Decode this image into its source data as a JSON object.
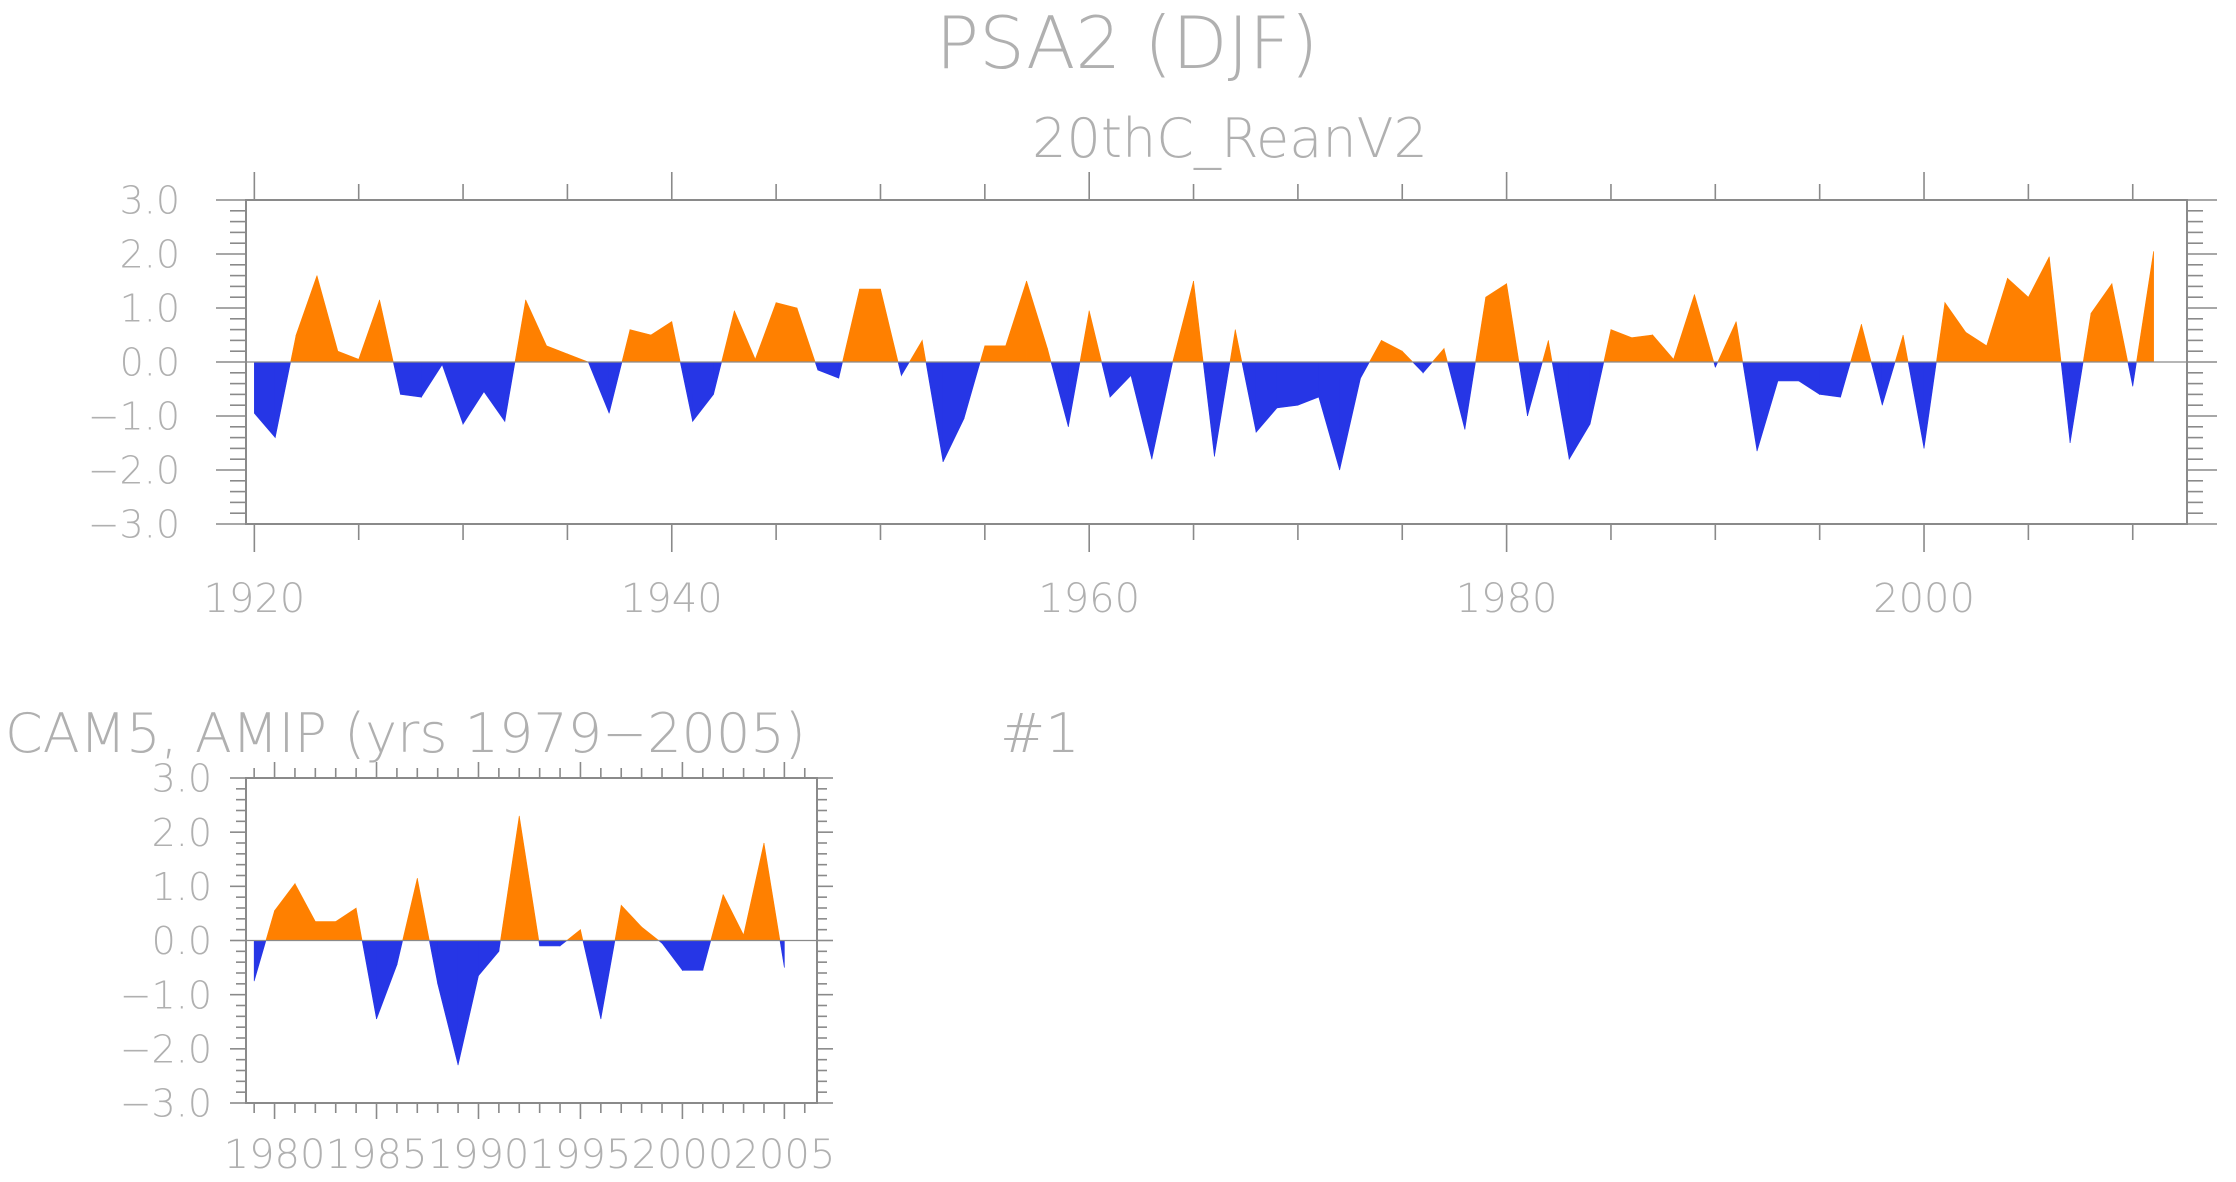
{
  "main_title": "PSA2 (DJF)",
  "panel_label": "#1",
  "colors": {
    "positive": "#ff8000",
    "negative": "#2636e6",
    "text": "#b0b0b0",
    "axis": "#8a8a8a"
  },
  "chart_data": [
    {
      "type": "area",
      "title": "20thC_ReanV2",
      "x_tick_labels": [
        "1920",
        "1940",
        "1960",
        "1980",
        "2000"
      ],
      "x_ticks": [
        1920,
        1940,
        1960,
        1980,
        2000
      ],
      "y_tick_labels": [
        "3.0",
        "2.0",
        "1.0",
        "0.0",
        "−1.0",
        "−2.0",
        "−3.0"
      ],
      "y_ticks": [
        3,
        2,
        1,
        0,
        -1,
        -2,
        -3
      ],
      "xlim": [
        1919.6,
        2012.6
      ],
      "ylim": [
        -3,
        3
      ],
      "fill_above_zero": "positive",
      "fill_below_zero": "negative",
      "x": [
        1920,
        1921,
        1922,
        1923,
        1924,
        1925,
        1926,
        1927,
        1928,
        1929,
        1930,
        1931,
        1932,
        1933,
        1934,
        1935,
        1936,
        1937,
        1938,
        1939,
        1940,
        1941,
        1942,
        1943,
        1944,
        1945,
        1946,
        1947,
        1948,
        1949,
        1950,
        1951,
        1952,
        1953,
        1954,
        1955,
        1956,
        1957,
        1958,
        1959,
        1960,
        1961,
        1962,
        1963,
        1964,
        1965,
        1966,
        1967,
        1968,
        1969,
        1970,
        1971,
        1972,
        1973,
        1974,
        1975,
        1976,
        1977,
        1978,
        1979,
        1980,
        1981,
        1982,
        1983,
        1984,
        1985,
        1986,
        1987,
        1988,
        1989,
        1990,
        1991,
        1992,
        1993,
        1994,
        1995,
        1996,
        1997,
        1998,
        1999,
        2000,
        2001,
        2002,
        2003,
        2004,
        2005,
        2006,
        2007,
        2008,
        2009,
        2010,
        2011
      ],
      "values": [
        -0.95,
        -1.4,
        0.5,
        1.6,
        0.2,
        0.05,
        1.15,
        -0.6,
        -0.65,
        -0.05,
        -1.15,
        -0.55,
        -1.1,
        1.15,
        0.3,
        0.15,
        0.0,
        -0.95,
        0.6,
        0.5,
        0.75,
        -1.1,
        -0.6,
        0.95,
        0.05,
        1.1,
        1.0,
        -0.15,
        -0.3,
        1.35,
        1.35,
        -0.25,
        0.4,
        -1.85,
        -1.05,
        0.3,
        0.3,
        1.5,
        0.25,
        -1.2,
        0.95,
        -0.65,
        -0.25,
        -1.8,
        0.0,
        1.5,
        -1.75,
        0.6,
        -1.3,
        -0.85,
        -0.8,
        -0.65,
        -2.0,
        -0.3,
        0.4,
        0.2,
        -0.2,
        0.25,
        -1.25,
        1.2,
        1.45,
        -1.0,
        0.4,
        -1.8,
        -1.15,
        0.6,
        0.45,
        0.5,
        0.05,
        1.25,
        -0.1,
        0.75,
        -1.65,
        -0.35,
        -0.35,
        -0.6,
        -0.65,
        0.7,
        -0.8,
        0.5,
        -1.6,
        1.1,
        0.55,
        0.3,
        1.55,
        1.2,
        1.95,
        -1.5,
        0.9,
        1.45,
        -0.45,
        2.05
      ]
    },
    {
      "type": "area",
      "title": "CAM5, AMIP (yrs 1979−2005)",
      "x_tick_labels": [
        "1980",
        "1985",
        "1990",
        "1995",
        "2000",
        "2005"
      ],
      "x_ticks": [
        1980,
        1985,
        1990,
        1995,
        2000,
        2005
      ],
      "y_tick_labels": [
        "3.0",
        "2.0",
        "1.0",
        "0.0",
        "−1.0",
        "−2.0",
        "−3.0"
      ],
      "y_ticks": [
        3,
        2,
        1,
        0,
        -1,
        -2,
        -3
      ],
      "xlim": [
        1978.6,
        2006.6
      ],
      "ylim": [
        -3,
        3
      ],
      "fill_above_zero": "positive",
      "fill_below_zero": "negative",
      "x": [
        1979,
        1980,
        1981,
        1982,
        1983,
        1984,
        1985,
        1986,
        1987,
        1988,
        1989,
        1990,
        1991,
        1992,
        1993,
        1994,
        1995,
        1996,
        1997,
        1998,
        1999,
        2000,
        2001,
        2002,
        2003,
        2004,
        2005
      ],
      "values": [
        -0.75,
        0.55,
        1.05,
        0.35,
        0.35,
        0.6,
        -1.45,
        -0.45,
        1.15,
        -0.8,
        -2.3,
        -0.65,
        -0.2,
        2.3,
        -0.1,
        -0.1,
        0.2,
        -1.45,
        0.65,
        0.25,
        -0.05,
        -0.55,
        -0.55,
        0.85,
        0.1,
        1.8,
        -0.5
      ]
    }
  ]
}
